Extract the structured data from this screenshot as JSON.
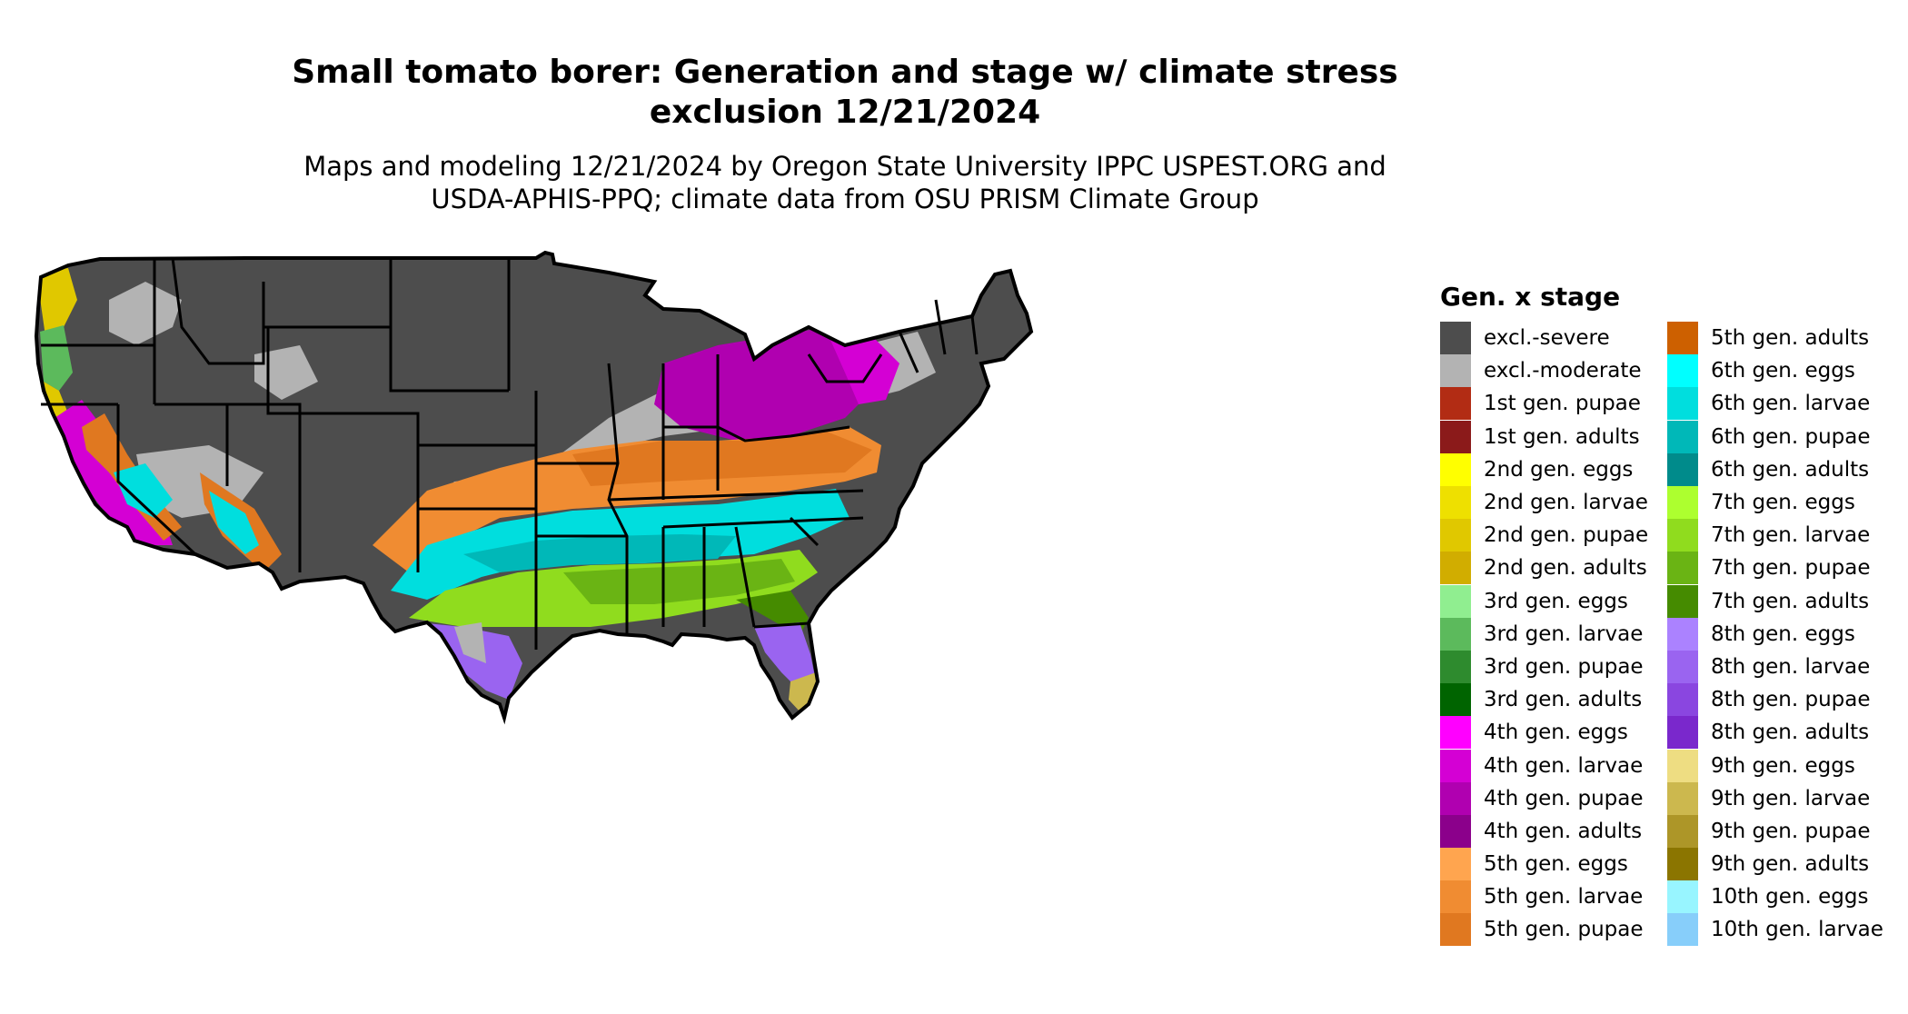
{
  "title_line1": "Small tomato borer: Generation and stage w/ climate stress",
  "title_line2": "exclusion 12/21/2024",
  "subtitle_line1": "Maps and modeling 12/21/2024 by Oregon State University IPPC USPEST.ORG and",
  "subtitle_line2": "USDA-APHIS-PPQ; climate data from OSU PRISM Climate Group",
  "legend": {
    "title": "Gen. x stage",
    "items": [
      {
        "label": "excl.-severe",
        "color": "#4d4d4d"
      },
      {
        "label": "excl.-moderate",
        "color": "#b3b3b3"
      },
      {
        "label": "1st gen. pupae",
        "color": "#b22c14"
      },
      {
        "label": "1st gen. adults",
        "color": "#8b1a1a"
      },
      {
        "label": "2nd gen. eggs",
        "color": "#ffff00"
      },
      {
        "label": "2nd gen. larvae",
        "color": "#eee000"
      },
      {
        "label": "2nd gen. pupae",
        "color": "#e0c800"
      },
      {
        "label": "2nd gen. adults",
        "color": "#d1ad00"
      },
      {
        "label": "3rd gen. eggs",
        "color": "#90ee90"
      },
      {
        "label": "3rd gen. larvae",
        "color": "#5cba5c"
      },
      {
        "label": "3rd gen. pupae",
        "color": "#2e8b2e"
      },
      {
        "label": "3rd gen. adults",
        "color": "#006400"
      },
      {
        "label": "4th gen. eggs",
        "color": "#ff00ff"
      },
      {
        "label": "4th gen. larvae",
        "color": "#d400d4"
      },
      {
        "label": "4th gen. pupae",
        "color": "#b000b0"
      },
      {
        "label": "4th gen. adults",
        "color": "#8b008b"
      },
      {
        "label": "5th gen. eggs",
        "color": "#ffa54f"
      },
      {
        "label": "5th gen. larvae",
        "color": "#f08c32"
      },
      {
        "label": "5th gen. pupae",
        "color": "#e07820"
      },
      {
        "label": "5th gen. adults",
        "color": "#cd6000"
      },
      {
        "label": "6th gen. eggs",
        "color": "#00ffff"
      },
      {
        "label": "6th gen. larvae",
        "color": "#00dede"
      },
      {
        "label": "6th gen. pupae",
        "color": "#00b8b8"
      },
      {
        "label": "6th gen. adults",
        "color": "#008b8b"
      },
      {
        "label": "7th gen. eggs",
        "color": "#adff2f"
      },
      {
        "label": "7th gen. larvae",
        "color": "#90dc1e"
      },
      {
        "label": "7th gen. pupae",
        "color": "#6ab414"
      },
      {
        "label": "7th gen. adults",
        "color": "#458b00"
      },
      {
        "label": "8th gen. eggs",
        "color": "#ab82ff"
      },
      {
        "label": "8th gen. larvae",
        "color": "#9a64f0"
      },
      {
        "label": "8th gen. pupae",
        "color": "#8a46e0"
      },
      {
        "label": "8th gen. adults",
        "color": "#7a28cc"
      },
      {
        "label": "9th gen. eggs",
        "color": "#eedd82"
      },
      {
        "label": "9th gen. larvae",
        "color": "#ccb84e"
      },
      {
        "label": "9th gen. pupae",
        "color": "#ad9628"
      },
      {
        "label": "9th gen. adults",
        "color": "#8b7500"
      },
      {
        "label": "10th gen. eggs",
        "color": "#98f5ff"
      },
      {
        "label": "10th gen. larvae",
        "color": "#87cefa"
      }
    ]
  }
}
